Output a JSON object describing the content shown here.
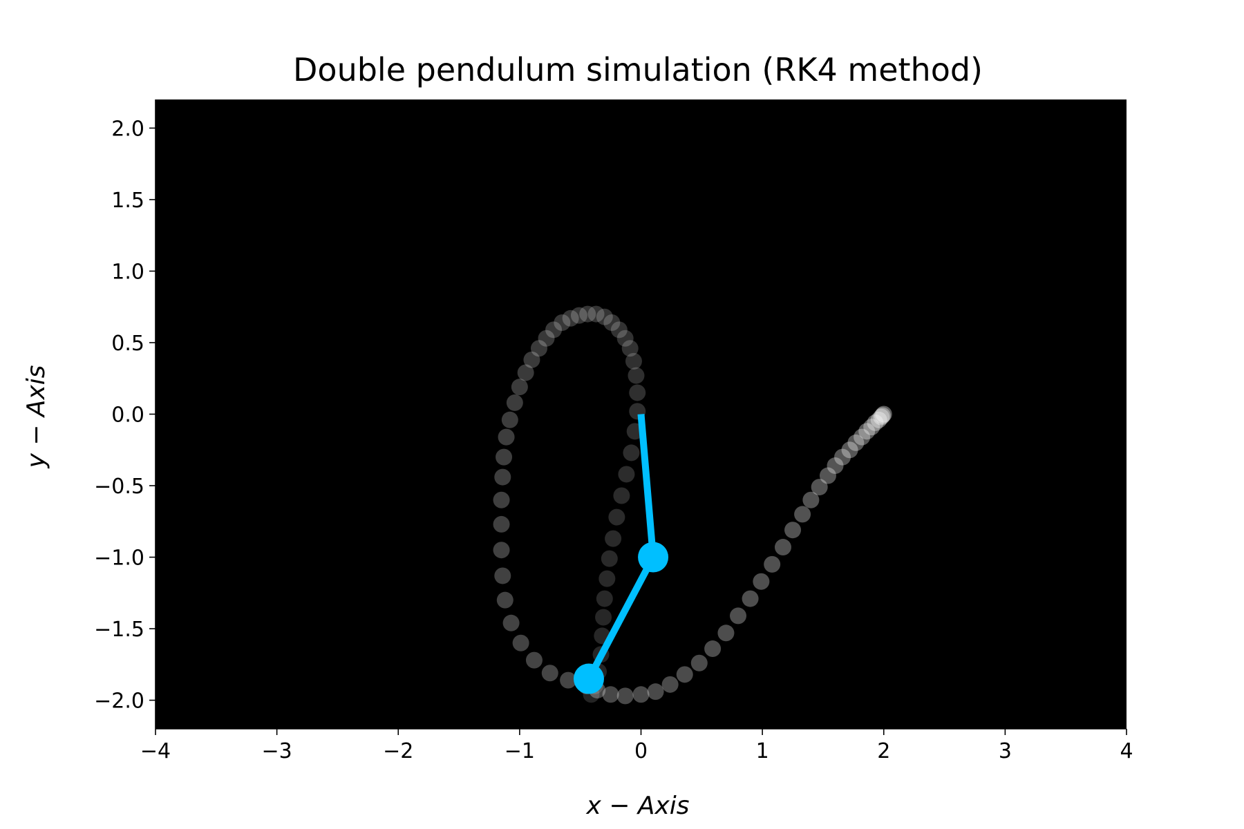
{
  "chart_data": {
    "type": "scatter",
    "title": "Double pendulum simulation (RK4 method)",
    "xlabel": "x − Axis",
    "ylabel": "y − Axis",
    "xlim": [
      -4,
      4
    ],
    "ylim": [
      -2.2,
      2.2
    ],
    "xticks": [
      -4,
      -3,
      -2,
      -1,
      0,
      1,
      2,
      3,
      4
    ],
    "yticks": [
      -2.0,
      -1.5,
      -1.0,
      -0.5,
      0.0,
      0.5,
      1.0,
      1.5,
      2.0
    ],
    "xtick_labels": [
      "−4",
      "−3",
      "−2",
      "−1",
      "0",
      "1",
      "2",
      "3",
      "4"
    ],
    "ytick_labels": [
      "−2.0",
      "−1.5",
      "−1.0",
      "−0.5",
      "0.0",
      "0.5",
      "1.0",
      "1.5",
      "2.0"
    ],
    "grid": false,
    "background_color": "#000000",
    "trail_color": "#ffffff",
    "pendulum_color": "#00bfff",
    "trail": {
      "x": [
        2.0,
        1.99,
        1.98,
        1.96,
        1.93,
        1.9,
        1.86,
        1.82,
        1.77,
        1.72,
        1.66,
        1.6,
        1.54,
        1.47,
        1.4,
        1.33,
        1.25,
        1.17,
        1.08,
        0.99,
        0.9,
        0.8,
        0.7,
        0.59,
        0.48,
        0.36,
        0.24,
        0.12,
        0.0,
        -0.13,
        -0.25,
        -0.36,
        -0.45,
        -0.6,
        -0.75,
        -0.88,
        -0.99,
        -1.07,
        -1.12,
        -1.14,
        -1.15,
        -1.15,
        -1.15,
        -1.14,
        -1.13,
        -1.11,
        -1.08,
        -1.04,
        -1.0,
        -0.95,
        -0.9,
        -0.84,
        -0.78,
        -0.72,
        -0.65,
        -0.58,
        -0.51,
        -0.44,
        -0.37,
        -0.3,
        -0.24,
        -0.18,
        -0.13,
        -0.09,
        -0.06,
        -0.04,
        -0.03,
        -0.03,
        -0.05,
        -0.08,
        -0.12,
        -0.16,
        -0.2,
        -0.23,
        -0.26,
        -0.28,
        -0.3,
        -0.31,
        -0.32,
        -0.33,
        -0.35,
        -0.38,
        -0.41
      ],
      "y": [
        0.0,
        -0.01,
        -0.02,
        -0.04,
        -0.06,
        -0.09,
        -0.12,
        -0.16,
        -0.2,
        -0.25,
        -0.3,
        -0.36,
        -0.43,
        -0.51,
        -0.6,
        -0.7,
        -0.81,
        -0.93,
        -1.05,
        -1.17,
        -1.29,
        -1.41,
        -1.53,
        -1.64,
        -1.74,
        -1.82,
        -1.89,
        -1.94,
        -1.96,
        -1.97,
        -1.96,
        -1.93,
        -1.9,
        -1.86,
        -1.81,
        -1.72,
        -1.6,
        -1.46,
        -1.3,
        -1.13,
        -0.95,
        -0.77,
        -0.6,
        -0.44,
        -0.3,
        -0.16,
        -0.04,
        0.08,
        0.19,
        0.29,
        0.38,
        0.46,
        0.53,
        0.59,
        0.64,
        0.67,
        0.69,
        0.7,
        0.7,
        0.68,
        0.64,
        0.59,
        0.53,
        0.46,
        0.37,
        0.27,
        0.15,
        0.02,
        -0.12,
        -0.27,
        -0.42,
        -0.57,
        -0.72,
        -0.87,
        -1.01,
        -1.15,
        -1.29,
        -1.42,
        -1.55,
        -1.68,
        -1.8,
        -1.9,
        -1.96
      ]
    },
    "rods": {
      "x": [
        0.0,
        0.1,
        -0.43
      ],
      "y": [
        0.0,
        -1.0,
        -1.85
      ]
    }
  }
}
